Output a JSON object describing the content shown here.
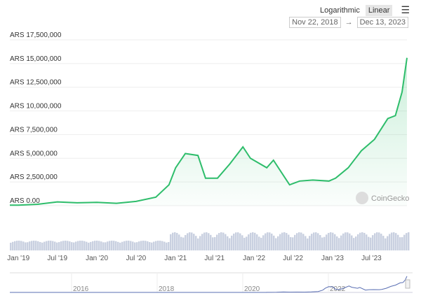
{
  "controls": {
    "logarithmic": "Logarithmic",
    "linear": "Linear",
    "menu_icon": "hamburger-menu-icon",
    "range_from": "Nov 22, 2018",
    "range_arrow": "→",
    "range_to": "Dec 13, 2023"
  },
  "watermark": "CoinGecko",
  "colors": {
    "line": "#2ebd6b",
    "volume": "#c9d0e0",
    "navigator": "#5a6fb3"
  },
  "chart_data": {
    "type": "line",
    "currency": "ARS",
    "ylim": [
      0,
      17500000
    ],
    "yticks": [
      "ARS 0.00",
      "ARS 2,500,000",
      "ARS 5,000,000",
      "ARS 7,500,000",
      "ARS 10,000,000",
      "ARS 12,500,000",
      "ARS 15,000,000",
      "ARS 17,500,000"
    ],
    "xticks": [
      "Jan '19",
      "Jul '19",
      "Jan '20",
      "Jul '20",
      "Jan '21",
      "Jul '21",
      "Jan '22",
      "Jul '22",
      "Jan '23",
      "Jul '23"
    ],
    "navigator_ticks": [
      "2016",
      "2018",
      "2020",
      "2022"
    ],
    "x": [
      "2018-11-22",
      "2019-01-01",
      "2019-04-01",
      "2019-07-01",
      "2019-10-01",
      "2020-01-01",
      "2020-04-01",
      "2020-07-01",
      "2020-10-01",
      "2020-12-01",
      "2021-01-01",
      "2021-02-15",
      "2021-04-15",
      "2021-05-20",
      "2021-07-15",
      "2021-09-10",
      "2021-11-10",
      "2021-12-15",
      "2022-03-01",
      "2022-04-01",
      "2022-06-15",
      "2022-08-01",
      "2022-10-01",
      "2022-12-15",
      "2023-01-15",
      "2023-03-15",
      "2023-05-15",
      "2023-07-15",
      "2023-09-15",
      "2023-10-20",
      "2023-11-20",
      "2023-12-13"
    ],
    "y": [
      50000,
      60000,
      150000,
      400000,
      300000,
      350000,
      250000,
      450000,
      900000,
      2200000,
      4000000,
      5500000,
      5300000,
      2900000,
      2900000,
      4400000,
      6200000,
      5000000,
      4000000,
      4800000,
      2200000,
      2600000,
      2700000,
      2600000,
      2900000,
      4000000,
      5800000,
      7000000,
      9200000,
      9500000,
      12000000,
      15600000
    ]
  }
}
